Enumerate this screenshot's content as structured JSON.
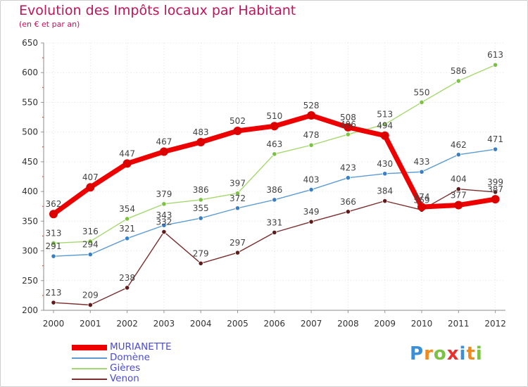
{
  "title": "Evolution des Impôts locaux par Habitant",
  "subtitle": "(en € et par an)",
  "logo": {
    "text": "Proxiti",
    "letters": [
      "P",
      "r",
      "o",
      "x",
      "i",
      "t",
      "i"
    ],
    "colors": [
      "#3a8fd6",
      "#f08a1c",
      "#7cc242",
      "#e8312f",
      "#3a8fd6",
      "#f08a1c",
      "#7cc242"
    ]
  },
  "chart_data": {
    "type": "line",
    "title": "Evolution des Impôts locaux par Habitant",
    "subtitle": "(en € et par an)",
    "xlabel": "",
    "ylabel": "",
    "ylim": [
      200,
      650
    ],
    "yticks": [
      200,
      250,
      300,
      350,
      400,
      450,
      500,
      550,
      600,
      650
    ],
    "categories": [
      "2000",
      "2001",
      "2002",
      "2003",
      "2004",
      "2005",
      "2006",
      "2007",
      "2008",
      "2009",
      "2010",
      "2011",
      "2012"
    ],
    "grid": true,
    "legend_position": "bottom-left",
    "series": [
      {
        "name": "MURIANETTE",
        "color": "#ee0000",
        "marker": "#dd0000",
        "bold": true,
        "values": [
          362,
          407,
          447,
          467,
          483,
          502,
          510,
          528,
          508,
          494,
          374,
          377,
          387
        ]
      },
      {
        "name": "Domène",
        "color": "#5c9bd3",
        "marker": "#3a7fc4",
        "bold": false,
        "values": [
          291,
          294,
          321,
          343,
          355,
          372,
          386,
          403,
          423,
          430,
          433,
          462,
          471
        ]
      },
      {
        "name": "Gières",
        "color": "#a4d86e",
        "marker": "#7cc242",
        "bold": false,
        "values": [
          313,
          316,
          354,
          379,
          386,
          397,
          463,
          478,
          496,
          513,
          550,
          586,
          613
        ]
      },
      {
        "name": "Venon",
        "color": "#7a2e2e",
        "marker": "#5e1b1b",
        "bold": false,
        "values": [
          213,
          209,
          238,
          332,
          279,
          297,
          331,
          349,
          366,
          384,
          369,
          404,
          399
        ]
      }
    ]
  }
}
